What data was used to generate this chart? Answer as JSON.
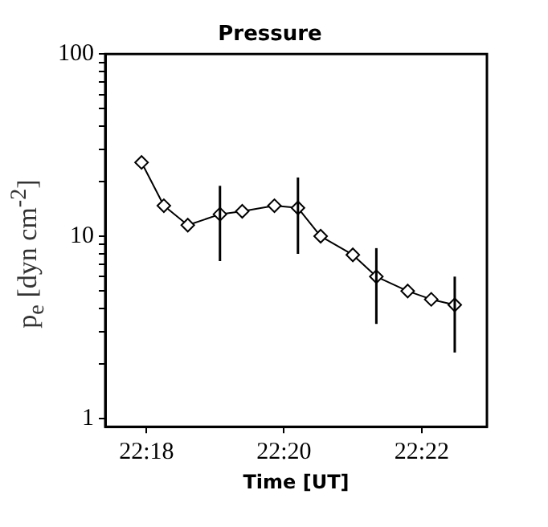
{
  "chart_data": {
    "type": "line",
    "title": "Pressure",
    "xlabel": "Time [UT]",
    "ylabel": "p$_{e}$ [dyn cm$^{-2}$]",
    "x": [
      22.2988,
      22.3042,
      22.31,
      22.3178,
      22.3232,
      22.331,
      22.3367,
      22.3422,
      22.35,
      22.3557,
      22.3633,
      22.369,
      22.3747
    ],
    "series": [
      {
        "color": "#000000",
        "values": [
          25.4,
          14.7,
          11.5,
          13.2,
          13.7,
          14.7,
          14.3,
          10.0,
          7.9,
          6.0,
          5.0,
          4.5,
          4.2
        ],
        "errors": [
          null,
          null,
          null,
          [
            7.3,
            18.9
          ],
          null,
          null,
          [
            8.0,
            21
          ],
          null,
          null,
          [
            3.3,
            8.6
          ],
          null,
          null,
          [
            2.3,
            6.0
          ]
        ]
      }
    ],
    "xlim": [
      22.29,
      22.3825
    ],
    "ylim": [
      0.9,
      100
    ],
    "log": "y",
    "xticks": [
      {
        "value": 22.3,
        "label": "22:18"
      },
      {
        "value": 22.3333,
        "label": "22:20"
      },
      {
        "value": 22.3667,
        "label": "22:22"
      }
    ],
    "yticks": [
      1,
      {
        "value": 2,
        "label": null
      },
      {
        "value": 3,
        "label": null
      },
      {
        "value": 4,
        "label": null
      },
      {
        "value": 5,
        "label": null
      },
      {
        "value": 6,
        "label": null
      },
      {
        "value": 7,
        "label": null
      },
      {
        "value": 8,
        "label": null
      },
      {
        "value": 9,
        "label": null
      },
      10,
      {
        "value": 20,
        "label": null
      },
      {
        "value": 30,
        "label": null
      },
      {
        "value": 40,
        "label": null
      },
      {
        "value": 50,
        "label": null
      },
      {
        "value": 60,
        "label": null
      },
      {
        "value": 70,
        "label": null
      },
      {
        "value": 80,
        "label": null
      },
      {
        "value": 90,
        "label": null
      },
      100
    ],
    "grid": false,
    "legend": false,
    "marker": "diamond",
    "line_style": "solid"
  }
}
